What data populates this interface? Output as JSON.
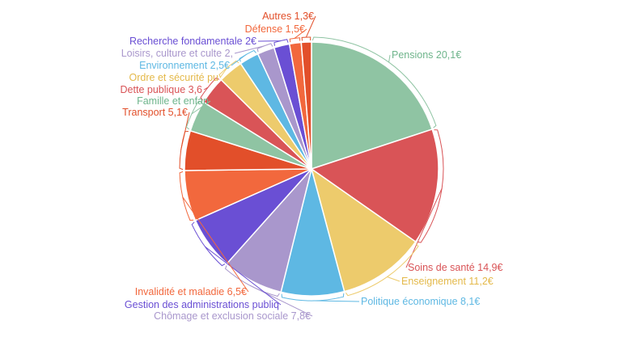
{
  "chart_data": {
    "type": "pie",
    "slices": [
      {
        "label": "Pensions 20,1€",
        "name": "Pensions",
        "value": 20.1,
        "color": "#8fc4a3"
      },
      {
        "label": "Soins de santé 14,9€",
        "name": "Soins de santé",
        "value": 14.9,
        "color": "#d95457"
      },
      {
        "label": "Enseignement 11,2€",
        "name": "Enseignement",
        "value": 11.2,
        "color": "#edcb6c"
      },
      {
        "label": "Politique économique 8,1€",
        "name": "Politique économique",
        "value": 8.1,
        "color": "#5eb8e3"
      },
      {
        "label": "Chômage et exclusion sociale 7,8€",
        "name": "Chômage et exclusion sociale",
        "value": 7.8,
        "color": "#a997cc"
      },
      {
        "label": "Gestion des administrations publiq",
        "name": "Gestion des administrations publiques",
        "value": 6.8,
        "color": "#6a4fd4"
      },
      {
        "label": "Invalidité et maladie 6,5€",
        "name": "Invalidité et maladie",
        "value": 6.5,
        "color": "#f2683d"
      },
      {
        "label": "Transport 5,1€",
        "name": "Transport",
        "value": 5.1,
        "color": "#e24f2a"
      },
      {
        "label": "Famille et enfan",
        "name": "Famille et enfants",
        "value": 4.0,
        "color": "#8fc4a3"
      },
      {
        "label": "Dette publique 3,6",
        "name": "Dette publique",
        "value": 3.6,
        "color": "#d95457"
      },
      {
        "label": "Ordre et sécurité pu",
        "name": "Ordre et sécurité publique",
        "value": 3.2,
        "color": "#edcb6c"
      },
      {
        "label": "Environnement 2,5€",
        "name": "Environnement",
        "value": 2.5,
        "color": "#5eb8e3"
      },
      {
        "label": "Loisirs, culture et culte 2,",
        "name": "Loisirs, culture et culte",
        "value": 2.2,
        "color": "#a997cc"
      },
      {
        "label": "Recherche fondamentale 2€",
        "name": "Recherche fondamentale",
        "value": 2.0,
        "color": "#6a4fd4"
      },
      {
        "label": "Défense 1,5€",
        "name": "Défense",
        "value": 1.5,
        "color": "#f2683d"
      },
      {
        "label": "Autres 1,3€",
        "name": "Autres",
        "value": 1.3,
        "color": "#e24f2a"
      }
    ]
  }
}
